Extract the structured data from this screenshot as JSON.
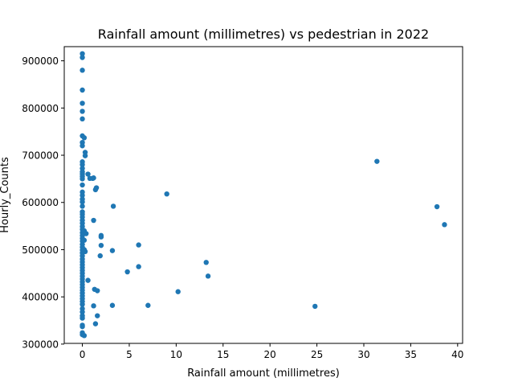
{
  "chart_data": {
    "type": "scatter",
    "title": "Rainfall amount (millimetres) vs pedestrian in 2022",
    "xlabel": "Rainfall amount (millimetres)",
    "ylabel": "Hourly_Counts",
    "xlim": [
      -1.93,
      40.53
    ],
    "ylim": [
      301500,
      930000
    ],
    "xticks": [
      0,
      5,
      10,
      15,
      20,
      25,
      30,
      35,
      40
    ],
    "yticks": [
      300000,
      400000,
      500000,
      600000,
      700000,
      800000,
      900000
    ],
    "ytick_labels": [
      "300000",
      "400000",
      "500000",
      "600000",
      "700000",
      "800000",
      "900000"
    ],
    "grid": false,
    "marker_color": "#1f77b4",
    "points": [
      [
        0,
        915000
      ],
      [
        0,
        907000
      ],
      [
        0,
        880000
      ],
      [
        0,
        838000
      ],
      [
        0,
        810000
      ],
      [
        0,
        793000
      ],
      [
        0,
        777000
      ],
      [
        0,
        741000
      ],
      [
        0.2,
        737000
      ],
      [
        0,
        727000
      ],
      [
        0,
        720000
      ],
      [
        0.3,
        706000
      ],
      [
        0.3,
        699000
      ],
      [
        0,
        686000
      ],
      [
        0,
        680000
      ],
      [
        0,
        672000
      ],
      [
        0,
        665000
      ],
      [
        0,
        660000
      ],
      [
        0,
        655000
      ],
      [
        0,
        650000
      ],
      [
        0,
        637000
      ],
      [
        0,
        622000
      ],
      [
        0,
        615000
      ],
      [
        0,
        607000
      ],
      [
        0,
        601000
      ],
      [
        0,
        592000
      ],
      [
        0,
        580000
      ],
      [
        0,
        575000
      ],
      [
        0,
        569000
      ],
      [
        0,
        562000
      ],
      [
        0,
        556000
      ],
      [
        0,
        549000
      ],
      [
        0,
        543000
      ],
      [
        0,
        536000
      ],
      [
        0,
        530000
      ],
      [
        0,
        524000
      ],
      [
        0,
        518000
      ],
      [
        0,
        511000
      ],
      [
        0,
        505000
      ],
      [
        0,
        499000
      ],
      [
        0,
        493000
      ],
      [
        0,
        487000
      ],
      [
        0,
        480000
      ],
      [
        0,
        474000
      ],
      [
        0,
        468000
      ],
      [
        0,
        462000
      ],
      [
        0,
        456000
      ],
      [
        0,
        450000
      ],
      [
        0,
        444000
      ],
      [
        0,
        438000
      ],
      [
        0,
        432000
      ],
      [
        0,
        426000
      ],
      [
        0,
        420000
      ],
      [
        0,
        414000
      ],
      [
        0,
        408000
      ],
      [
        0,
        402000
      ],
      [
        0,
        396000
      ],
      [
        0,
        390000
      ],
      [
        0,
        384000
      ],
      [
        0,
        375000
      ],
      [
        0,
        368000
      ],
      [
        0,
        360000
      ],
      [
        0,
        355000
      ],
      [
        0,
        340000
      ],
      [
        0,
        337000
      ],
      [
        0,
        324000
      ],
      [
        0,
        320000
      ],
      [
        0.2,
        318000
      ],
      [
        0.2,
        500000
      ],
      [
        0.2,
        520000
      ],
      [
        0.2,
        540000
      ],
      [
        0.3,
        496000
      ],
      [
        0.4,
        534000
      ],
      [
        0.6,
        435000
      ],
      [
        0.6,
        660000
      ],
      [
        0.8,
        651000
      ],
      [
        1.1,
        651000
      ],
      [
        1.2,
        652000
      ],
      [
        1.2,
        562000
      ],
      [
        1.4,
        627000
      ],
      [
        1.5,
        631000
      ],
      [
        1.3,
        416000
      ],
      [
        1.6,
        413000
      ],
      [
        1.2,
        381000
      ],
      [
        1.6,
        360000
      ],
      [
        1.4,
        343000
      ],
      [
        2.0,
        530000
      ],
      [
        2.0,
        527000
      ],
      [
        2.0,
        509000
      ],
      [
        1.9,
        487000
      ],
      [
        3.3,
        592000
      ],
      [
        3.2,
        498000
      ],
      [
        3.2,
        382000
      ],
      [
        4.8,
        453000
      ],
      [
        6.0,
        510000
      ],
      [
        6.0,
        464000
      ],
      [
        7.0,
        382000
      ],
      [
        9.0,
        618000
      ],
      [
        10.2,
        411000
      ],
      [
        13.2,
        473000
      ],
      [
        13.4,
        444000
      ],
      [
        24.8,
        380000
      ],
      [
        31.4,
        687000
      ],
      [
        37.8,
        591000
      ],
      [
        38.6,
        553000
      ]
    ]
  }
}
